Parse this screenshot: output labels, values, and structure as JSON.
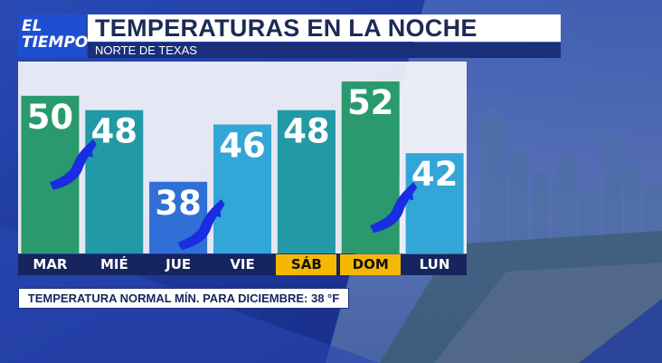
{
  "brand": {
    "line1": "EL",
    "line2": "TIEMPO"
  },
  "header": {
    "title": "TEMPERATURAS EN LA NOCHE",
    "subtitle": "NORTE DE TEXAS"
  },
  "note": "TEMPERATURA NORMAL MÍN. PARA DICIEMBRE: 38 °F",
  "icons": {
    "front": "cold-front-icon"
  },
  "colors": {
    "green": "#2a9a6e",
    "teal": "#2199a6",
    "blue": "#2f6fd6",
    "lightblue": "#33a6d8",
    "front": "#1a2de0",
    "weekend": "#f5b800"
  },
  "chart_data": {
    "type": "bar",
    "title": "TEMPERATURAS EN LA NOCHE",
    "categories": [
      "MAR",
      "MIÉ",
      "JUE",
      "VIE",
      "SÁB",
      "DOM",
      "LUN"
    ],
    "values": [
      50,
      48,
      38,
      46,
      48,
      52,
      42
    ],
    "bar_colors": [
      "#2a9a6e",
      "#2199a6",
      "#2f6fd6",
      "#33a6d8",
      "#2199a6",
      "#2a9a6e",
      "#33a6d8"
    ],
    "weekend_categories": [
      "SÁB",
      "DOM"
    ],
    "cold_front_after": [
      "MAR",
      "JUE",
      "DOM"
    ],
    "ylim": [
      28,
      52
    ],
    "grid": false,
    "legend": "none"
  }
}
